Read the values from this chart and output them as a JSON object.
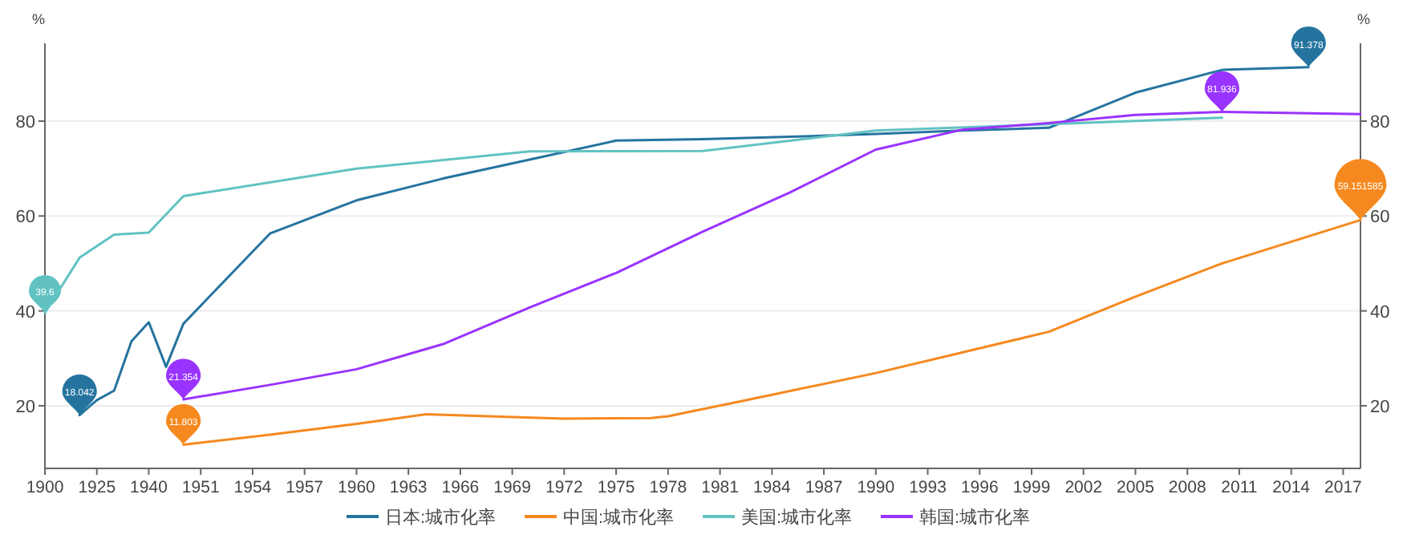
{
  "chart_data": {
    "type": "line",
    "ylabel": "%",
    "y2label": "%",
    "categories": [
      "1900",
      null,
      null,
      "1925",
      null,
      null,
      "1940",
      null,
      null,
      "1951",
      null,
      null,
      "1954",
      null,
      null,
      "1957",
      null,
      null,
      "1960",
      null,
      null,
      "1963",
      null,
      null,
      "1966",
      null,
      null,
      "1969",
      null,
      null,
      "1972",
      null,
      null,
      "1975",
      null,
      null,
      "1978",
      null,
      null,
      "1981",
      null,
      null,
      "1984",
      null,
      null,
      "1987",
      null,
      null,
      "1990",
      null,
      null,
      "1993",
      null,
      null,
      "1996",
      null,
      null,
      "1999",
      null,
      null,
      "2002",
      null,
      null,
      "2005",
      null,
      null,
      "2008",
      null,
      null,
      "2011",
      null,
      null,
      "2014",
      null,
      null,
      "2017",
      null
    ],
    "series": [
      {
        "name": "日本:城市化率",
        "color": "#25749f",
        "values": [
          null,
          null,
          18.042,
          21.2,
          23.2,
          33.6,
          37.6,
          28.2,
          37.3,
          null,
          null,
          null,
          null,
          56.3,
          null,
          null,
          null,
          null,
          63.3,
          null,
          null,
          null,
          null,
          67.9,
          null,
          null,
          null,
          null,
          71.9,
          null,
          null,
          null,
          null,
          75.9,
          null,
          null,
          null,
          null,
          76.2,
          null,
          null,
          null,
          null,
          76.7,
          null,
          null,
          null,
          null,
          77.3,
          null,
          null,
          null,
          null,
          78.0,
          null,
          null,
          null,
          null,
          78.6,
          null,
          null,
          null,
          null,
          86.0,
          null,
          null,
          null,
          null,
          90.8,
          null,
          null,
          null,
          null,
          91.378,
          null,
          null,
          null
        ]
      },
      {
        "name": "中国:城市化率",
        "color": "#f5891f",
        "values": [
          null,
          null,
          null,
          null,
          null,
          null,
          null,
          null,
          11.803,
          null,
          null,
          null,
          null,
          13.9,
          null,
          null,
          null,
          null,
          16.2,
          null,
          null,
          null,
          18.2,
          null,
          null,
          null,
          null,
          null,
          null,
          null,
          17.3,
          null,
          null,
          null,
          null,
          17.4,
          17.8,
          null,
          null,
          null,
          20.8,
          null,
          null,
          null,
          null,
          null,
          null,
          null,
          26.9,
          null,
          null,
          null,
          null,
          null,
          null,
          null,
          null,
          null,
          35.6,
          null,
          null,
          null,
          null,
          43.0,
          null,
          null,
          null,
          null,
          50.0,
          null,
          null,
          null,
          null,
          null,
          null,
          null,
          59.151585
        ]
      },
      {
        "name": "美国:城市化率",
        "color": "#62c2c2",
        "values": [
          39.6,
          null,
          51.2,
          null,
          56.1,
          null,
          56.5,
          null,
          64.2,
          null,
          null,
          null,
          null,
          null,
          null,
          null,
          null,
          null,
          70.0,
          null,
          null,
          null,
          null,
          null,
          null,
          null,
          null,
          null,
          73.6,
          null,
          null,
          null,
          null,
          null,
          null,
          null,
          null,
          null,
          73.7,
          null,
          null,
          null,
          null,
          null,
          null,
          null,
          null,
          null,
          78.0,
          null,
          null,
          null,
          null,
          null,
          null,
          null,
          null,
          null,
          null,
          null,
          null,
          null,
          null,
          null,
          null,
          null,
          null,
          null,
          80.7,
          null,
          null,
          null,
          null,
          null,
          null,
          null,
          null
        ]
      },
      {
        "name": "韩国:城市化率",
        "color": "#9933ff",
        "values": [
          null,
          null,
          null,
          null,
          null,
          null,
          null,
          null,
          21.354,
          null,
          null,
          null,
          null,
          24.4,
          null,
          null,
          null,
          null,
          27.7,
          null,
          null,
          null,
          null,
          33.0,
          null,
          null,
          null,
          null,
          40.7,
          null,
          null,
          null,
          null,
          48.0,
          null,
          null,
          null,
          null,
          56.7,
          null,
          null,
          null,
          null,
          64.9,
          null,
          null,
          null,
          null,
          74.0,
          null,
          null,
          null,
          null,
          78.2,
          null,
          null,
          null,
          null,
          79.6,
          null,
          null,
          null,
          null,
          81.3,
          null,
          null,
          null,
          null,
          81.936,
          null,
          null,
          null,
          null,
          null,
          null,
          null,
          81.5
        ]
      }
    ],
    "ylim": [
      6.8,
      96.4
    ],
    "yticks": [
      20,
      40,
      60,
      80
    ],
    "y2lim": [
      6.8,
      96.4
    ],
    "y2ticks": [
      20,
      40,
      60,
      80
    ],
    "grid": "y",
    "legend": "bottom",
    "marker": "none",
    "line_style": "solid",
    "annotations": [
      {
        "text": "18.042",
        "y": 18.042
      },
      {
        "text": "39.6",
        "y": 39.6
      },
      {
        "text": "21.354",
        "y": 21.354
      },
      {
        "text": "11.803",
        "y": 11.803
      },
      {
        "text": "81.936",
        "y": 81.936
      },
      {
        "text": "91.378",
        "y": 91.378
      },
      {
        "text": "59.151585",
        "y": 59.151585
      }
    ]
  }
}
